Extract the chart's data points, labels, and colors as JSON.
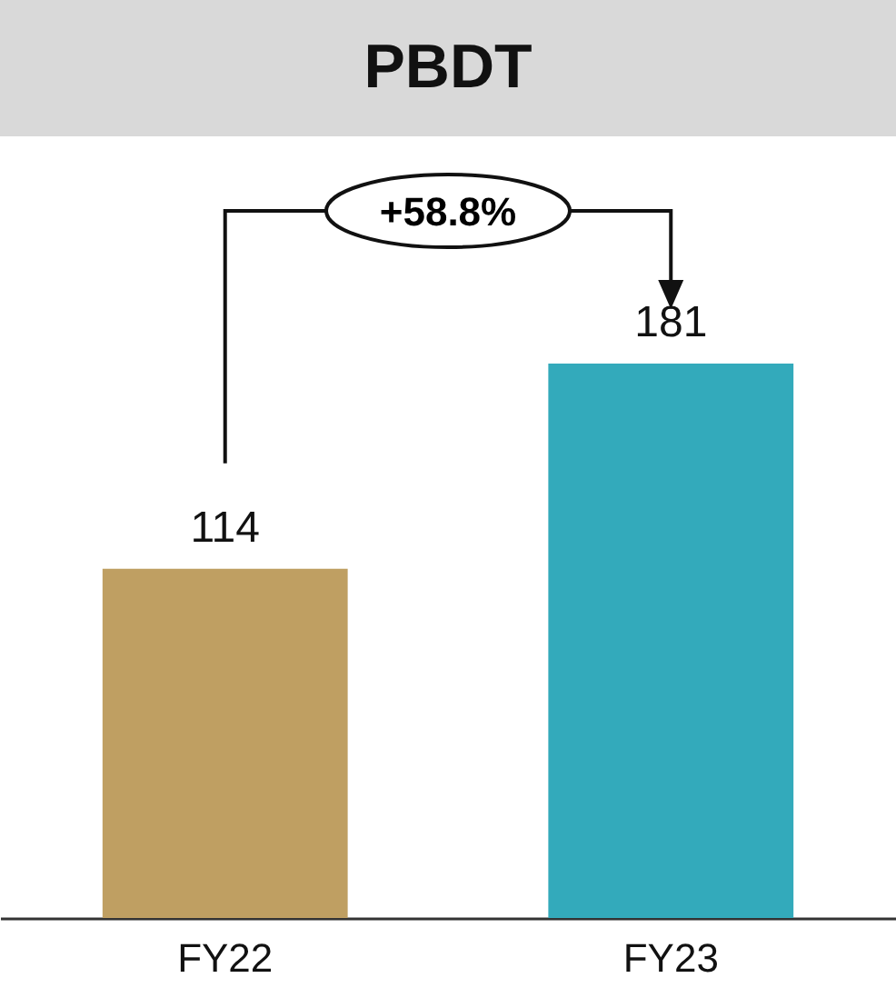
{
  "chart_data": {
    "type": "bar",
    "title": "PBDT",
    "categories": [
      "FY22",
      "FY23"
    ],
    "values": [
      114,
      181
    ],
    "colors": [
      "#bf9f62",
      "#33aabb"
    ],
    "data_labels": true,
    "annotations": [
      "+58.8%"
    ]
  }
}
